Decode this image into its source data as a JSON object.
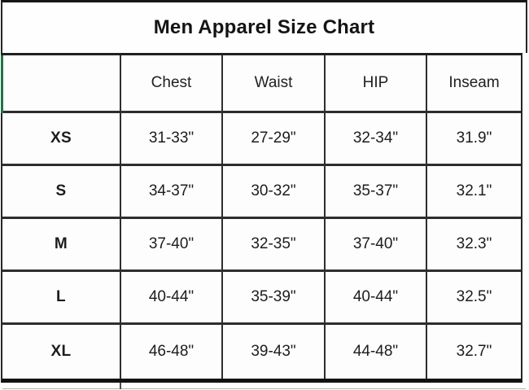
{
  "title": "Men Apparel Size Chart",
  "chart_data": {
    "type": "table",
    "title": "Men Apparel Size Chart",
    "columns": [
      "",
      "Chest",
      "Waist",
      "HIP",
      "Inseam"
    ],
    "rows": [
      [
        "XS",
        "31-33\"",
        "27-29\"",
        "32-34\"",
        "31.9\""
      ],
      [
        "S",
        "34-37\"",
        "30-32\"",
        "35-37\"",
        "32.1\""
      ],
      [
        "M",
        "37-40\"",
        "32-35\"",
        "37-40\"",
        "32.3\""
      ],
      [
        "L",
        "40-44\"",
        "35-39\"",
        "40-44\"",
        "32.5\""
      ],
      [
        "XL",
        "46-48\"",
        "39-43\"",
        "44-48\"",
        "32.7\""
      ]
    ],
    "layout_hints": {
      "first_column_is_size_label": true,
      "grid": "on",
      "title_position": "top-center"
    }
  },
  "colors": {
    "accent_green": "#217346",
    "grid_line": "#2e2e2e",
    "outer_border": "#161616",
    "text": "#1d1d1d",
    "background": "#fefefe"
  }
}
